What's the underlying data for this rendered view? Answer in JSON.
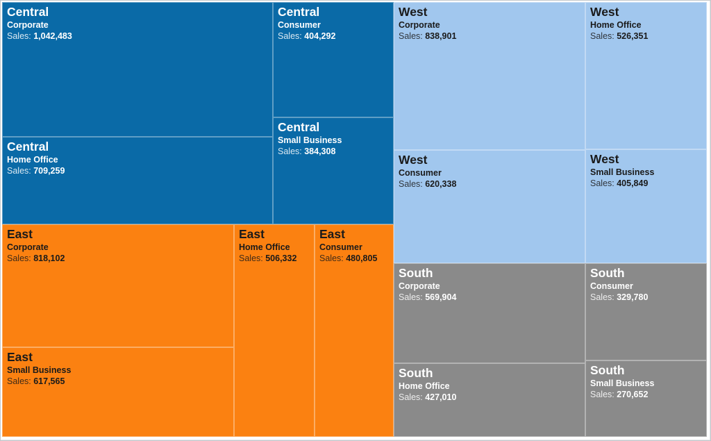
{
  "chart_data": {
    "type": "treemap",
    "measure": "Sales",
    "sales_prefix": "Sales:",
    "legend_position": "none",
    "regions": [
      {
        "name": "Central",
        "color": "#0a6aa7",
        "text_color": "#ffffff",
        "children": [
          {
            "category": "Corporate",
            "value": 1042483,
            "display": "1,042,483"
          },
          {
            "category": "Home Office",
            "value": 709259,
            "display": "709,259"
          },
          {
            "category": "Consumer",
            "value": 404292,
            "display": "404,292"
          },
          {
            "category": "Small Business",
            "value": 384308,
            "display": "384,308"
          }
        ]
      },
      {
        "name": "East",
        "color": "#fb8111",
        "text_color": "#1a1a1a",
        "children": [
          {
            "category": "Corporate",
            "value": 818102,
            "display": "818,102"
          },
          {
            "category": "Small Business",
            "value": 617565,
            "display": "617,565"
          },
          {
            "category": "Home Office",
            "value": 506332,
            "display": "506,332"
          },
          {
            "category": "Consumer",
            "value": 480805,
            "display": "480,805"
          }
        ]
      },
      {
        "name": "West",
        "color": "#a1c7ee",
        "text_color": "#1a1a1a",
        "children": [
          {
            "category": "Corporate",
            "value": 838901,
            "display": "838,901"
          },
          {
            "category": "Consumer",
            "value": 620338,
            "display": "620,338"
          },
          {
            "category": "Home Office",
            "value": 526351,
            "display": "526,351"
          },
          {
            "category": "Small Business",
            "value": 405849,
            "display": "405,849"
          }
        ]
      },
      {
        "name": "South",
        "color": "#8a8a8a",
        "text_color": "#ffffff",
        "children": [
          {
            "category": "Corporate",
            "value": 569904,
            "display": "569,904"
          },
          {
            "category": "Home Office",
            "value": 427010,
            "display": "427,010"
          },
          {
            "category": "Consumer",
            "value": 329780,
            "display": "329,780"
          },
          {
            "category": "Small Business",
            "value": 270652,
            "display": "270,652"
          }
        ]
      }
    ]
  }
}
